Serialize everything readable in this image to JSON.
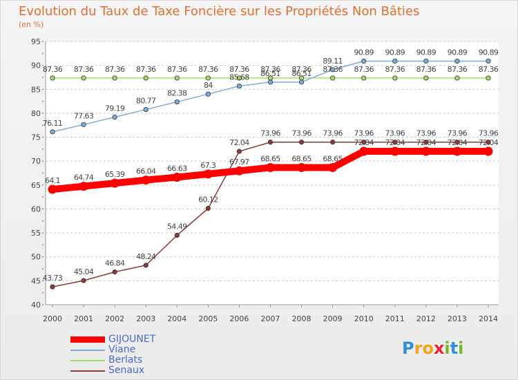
{
  "title": "Evolution du Taux de Taxe Foncière sur les Propriétés Non Bâties",
  "subtitle": "(en %)",
  "brand": {
    "letters": [
      {
        "ch": "P",
        "color": "#2f8fd8"
      },
      {
        "ch": "r",
        "color": "#f3a21a"
      },
      {
        "ch": "o",
        "color": "#f3a21a"
      },
      {
        "ch": "x",
        "color": "#e8232e"
      },
      {
        "ch": "i",
        "color": "#79b428"
      },
      {
        "ch": "t",
        "color": "#2f8fd8"
      },
      {
        "ch": "i",
        "color": "#79b428"
      }
    ]
  },
  "chart_data": {
    "type": "line",
    "title": "Evolution du Taux de Taxe Foncière sur les Propriétés Non Bâties",
    "subtitle": "(en %)",
    "xlabel": "",
    "ylabel": "",
    "x": [
      "2000",
      "2001",
      "2002",
      "2003",
      "2004",
      "2005",
      "2006",
      "2007",
      "2008",
      "2009",
      "2010",
      "2011",
      "2012",
      "2013",
      "2014"
    ],
    "ylim": [
      40,
      95
    ],
    "yticks": [
      40,
      45,
      50,
      55,
      60,
      65,
      70,
      75,
      80,
      85,
      90,
      95
    ],
    "grid": "horizontal dashed",
    "legend_position": "bottom-left",
    "series": [
      {
        "name": "GIJOUNET",
        "color": "#ff0000",
        "values": [
          64.1,
          64.74,
          65.39,
          66.04,
          66.63,
          67.3,
          67.97,
          68.65,
          68.65,
          68.65,
          72.04,
          72.04,
          72.04,
          72.04,
          72.04
        ],
        "labels": [
          "64.1",
          "64.74",
          "65.39",
          "66.04",
          "66.63",
          "67.3",
          "67.97",
          "68.65",
          "68.65",
          "68.65",
          "72.04",
          "72.04",
          "72.04",
          "72.04",
          "72.04"
        ]
      },
      {
        "name": "Viane",
        "color": "#7aaddc",
        "values": [
          76.11,
          77.63,
          79.19,
          80.77,
          82.38,
          84,
          85.68,
          86.51,
          86.51,
          89.11,
          90.89,
          90.89,
          90.89,
          90.89,
          90.89
        ],
        "labels": [
          "76.11",
          "77.63",
          "79.19",
          "80.77",
          "82.38",
          "84",
          "85.68",
          "86.51",
          "86.51",
          "89.11",
          "90.89",
          "90.89",
          "90.89",
          "90.89",
          "90.89"
        ]
      },
      {
        "name": "Berlats",
        "color": "#a4da6c",
        "values": [
          87.36,
          87.36,
          87.36,
          87.36,
          87.36,
          87.36,
          87.36,
          87.36,
          87.36,
          87.36,
          87.36,
          87.36,
          87.36,
          87.36,
          87.36
        ],
        "labels": [
          "87.36",
          "87.36",
          "87.36",
          "87.36",
          "87.36",
          "87.36",
          "87.36",
          "87.36",
          "87.36",
          "87.36",
          "87.36",
          "87.36",
          "87.36",
          "87.36",
          "87.36"
        ]
      },
      {
        "name": "Senaux",
        "color": "#8a3a3a",
        "values": [
          43.73,
          45.04,
          46.84,
          48.24,
          54.49,
          60.12,
          72.04,
          73.96,
          73.96,
          73.96,
          73.96,
          73.96,
          73.96,
          73.96,
          73.96
        ],
        "labels": [
          "43.73",
          "45.04",
          "46.84",
          "48.24",
          "54.49",
          "60.12",
          "72.04",
          "73.96",
          "73.96",
          "73.96",
          "73.96",
          "73.96",
          "73.96",
          "73.96",
          "73.96"
        ]
      }
    ]
  }
}
